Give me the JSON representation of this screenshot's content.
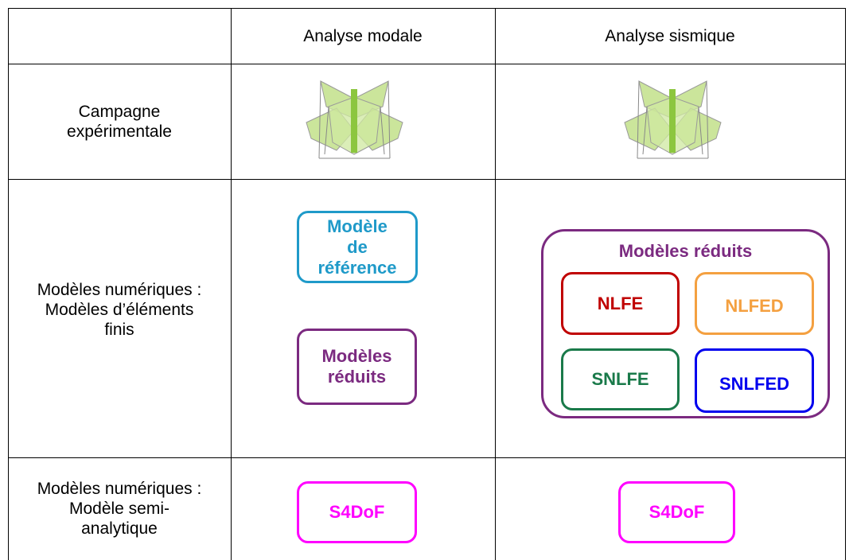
{
  "table": {
    "header": [
      "Analyse modale",
      "Analyse sismique"
    ],
    "rows": [
      {
        "label": [
          "Campagne",
          "expérimentale"
        ]
      },
      {
        "label": [
          "Modèles numériques :",
          "Modèles d’éléments",
          "finis"
        ],
        "modal": [
          {
            "lines": [
              "Modèle",
              "de",
              "référence"
            ]
          },
          {
            "lines": [
              "Modèles",
              "réduits"
            ]
          }
        ],
        "sismique": {
          "title": "Modèles réduits",
          "boxes": [
            "NLFE",
            "NLFED",
            "SNLFE",
            "SNLFED"
          ]
        }
      },
      {
        "label": [
          "Modèles numériques :",
          "Modèle semi-",
          "analytique"
        ],
        "modal": "S4DoF",
        "sismique": "S4DoF"
      }
    ]
  }
}
